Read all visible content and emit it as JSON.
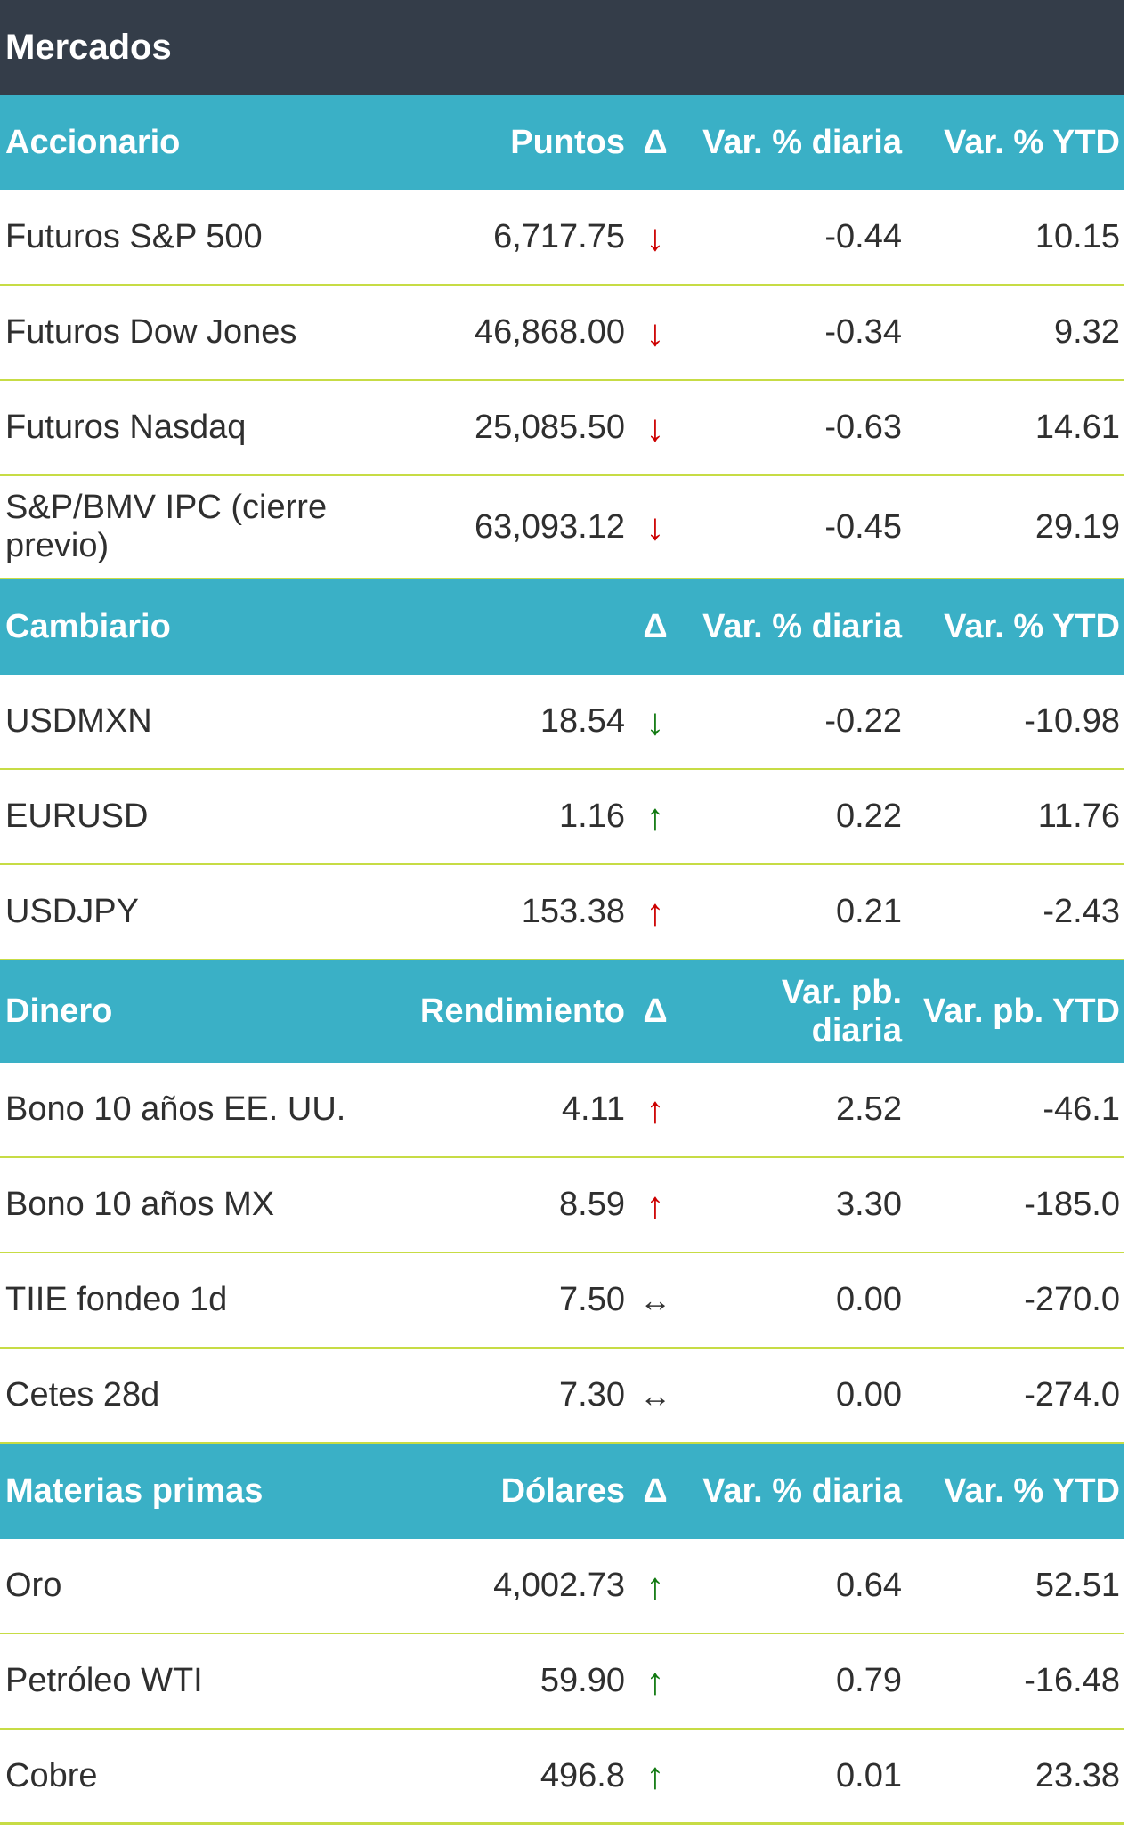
{
  "title": "Mercados",
  "sections": {
    "equities": {
      "header": {
        "name": "Accionario",
        "value": "Puntos",
        "delta": "Δ",
        "daily": "Var. % diaria",
        "ytd": "Var. % YTD"
      },
      "rows": [
        {
          "name": "Futuros S&P 500",
          "value": "6,717.75",
          "arrow": "↓",
          "daily": "-0.44",
          "ytd": "10.15"
        },
        {
          "name": "Futuros Dow Jones",
          "value": "46,868.00",
          "arrow": "↓",
          "daily": "-0.34",
          "ytd": "9.32"
        },
        {
          "name": "Futuros Nasdaq",
          "value": "25,085.50",
          "arrow": "↓",
          "daily": "-0.63",
          "ytd": "14.61"
        },
        {
          "name": "S&P/BMV IPC (cierre previo)",
          "value": "63,093.12",
          "arrow": "↓",
          "daily": "-0.45",
          "ytd": "29.19"
        }
      ]
    },
    "fx": {
      "header": {
        "name": "Cambiario",
        "value": "",
        "delta": "Δ",
        "daily": "Var. % diaria",
        "ytd": "Var. % YTD"
      },
      "rows": [
        {
          "name": "USDMXN",
          "value": "18.54",
          "arrow": "↓",
          "daily": "-0.22",
          "ytd": "-10.98"
        },
        {
          "name": "EURUSD",
          "value": "1.16",
          "arrow": "↑",
          "daily": "0.22",
          "ytd": "11.76"
        },
        {
          "name": "USDJPY",
          "value": "153.38",
          "arrow": "↑",
          "daily": "0.21",
          "ytd": "-2.43"
        }
      ]
    },
    "money": {
      "header": {
        "name": "Dinero",
        "value": "Rendimiento",
        "delta": "Δ",
        "daily": "Var. pb. diaria",
        "ytd": "Var. pb. YTD"
      },
      "rows": [
        {
          "name": "Bono 10 años EE. UU.",
          "value": "4.11",
          "arrow": "↑",
          "daily": "2.52",
          "ytd": "-46.1"
        },
        {
          "name": "Bono 10 años MX",
          "value": "8.59",
          "arrow": "↑",
          "daily": "3.30",
          "ytd": "-185.0"
        },
        {
          "name": "TIIE fondeo 1d",
          "value": "7.50",
          "arrow": "↔",
          "daily": "0.00",
          "ytd": "-270.0"
        },
        {
          "name": "Cetes 28d",
          "value": "7.30",
          "arrow": "↔",
          "daily": "0.00",
          "ytd": "-274.0"
        }
      ]
    },
    "commodities": {
      "header": {
        "name": "Materias primas",
        "value": "Dólares",
        "delta": "Δ",
        "daily": "Var. % diaria",
        "ytd": "Var. % YTD"
      },
      "rows": [
        {
          "name": "Oro",
          "value": "4,002.73",
          "arrow": "↑",
          "daily": "0.64",
          "ytd": "52.51"
        },
        {
          "name": "Petróleo WTI",
          "value": "59.90",
          "arrow": "↑",
          "daily": "0.79",
          "ytd": "-16.48"
        },
        {
          "name": "Cobre",
          "value": "496.8",
          "arrow": "↑",
          "daily": "0.01",
          "ytd": "23.38"
        }
      ]
    }
  },
  "colors": {
    "title_bg": "#343d49",
    "header_bg": "#3ab0c6",
    "divider": "#c7dc45",
    "negative_arrow": "#cc0000",
    "positive_arrow": "#127a12"
  }
}
